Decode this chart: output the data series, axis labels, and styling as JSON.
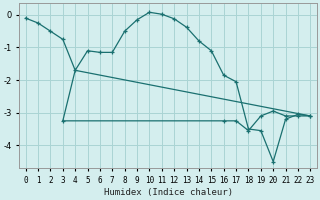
{
  "xlabel": "Humidex (Indice chaleur)",
  "bg_color": "#d4eeee",
  "line_color": "#1a7070",
  "grid_color": "#aad4d4",
  "xlim": [
    -0.5,
    23.5
  ],
  "ylim": [
    -4.7,
    0.35
  ],
  "xticks": [
    0,
    1,
    2,
    3,
    4,
    5,
    6,
    7,
    8,
    9,
    10,
    11,
    12,
    13,
    14,
    15,
    16,
    17,
    18,
    19,
    20,
    21,
    22,
    23
  ],
  "yticks": [
    0,
    -1,
    -2,
    -3,
    -4
  ],
  "line1_x": [
    0,
    1,
    2,
    3,
    4,
    5,
    6,
    7,
    8,
    9,
    10,
    11,
    12,
    13,
    14,
    15,
    16,
    17,
    18,
    19,
    20,
    21,
    22,
    23
  ],
  "line1_y": [
    -0.1,
    -0.25,
    -0.5,
    -0.75,
    -1.7,
    -1.1,
    -1.15,
    -1.15,
    -0.5,
    -0.15,
    0.08,
    0.02,
    -0.12,
    -0.38,
    -0.8,
    -1.1,
    -1.85,
    -2.05,
    -3.5,
    -3.55,
    -4.5,
    -3.2,
    -3.05,
    -3.1
  ],
  "line2_x": [
    3,
    16,
    17,
    18,
    19,
    20,
    21,
    22,
    23
  ],
  "line2_y": [
    -3.25,
    -3.25,
    -3.25,
    -3.55,
    -3.1,
    -2.95,
    -3.1,
    -3.1,
    -3.1
  ],
  "line3_x": [
    3,
    4,
    23
  ],
  "line3_y": [
    -3.25,
    -1.7,
    -3.1
  ]
}
